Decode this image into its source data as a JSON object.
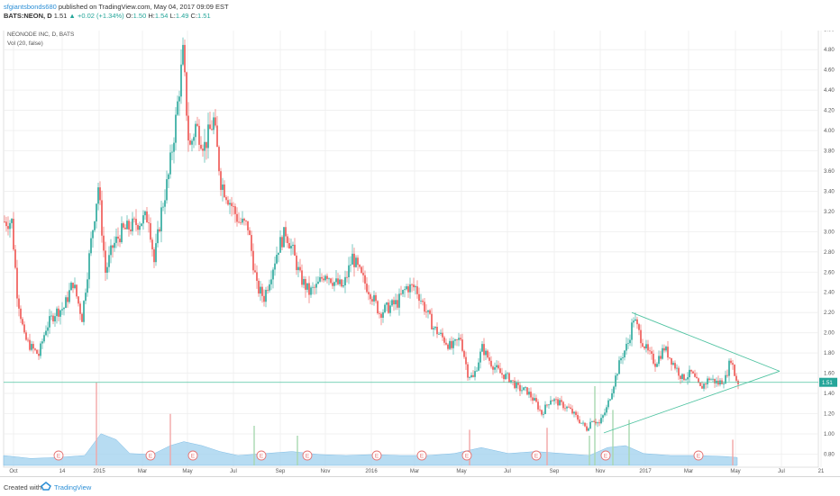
{
  "header": {
    "author": "sfgiantsbonds680",
    "published": "published on TradingView.com, May 04, 2017 09:09 EST",
    "ticker": "BATS:NEON, D",
    "price": "1.51",
    "change": "+0.02 (+1.34%)",
    "o_label": "O:",
    "o_value": "1.50",
    "h_label": "H:",
    "h_value": "1.54",
    "l_label": "L:",
    "l_value": "1.49",
    "c_label": "C:",
    "c_value": "1.51"
  },
  "footer": {
    "created_with": "Created with",
    "brand": "TradingView"
  },
  "chart_data": {
    "type": "candlestick",
    "legend": [
      "NEONODE INC, D, BATS",
      "Vol (20, false)"
    ],
    "current_price_label": "1.51",
    "current_price": 1.51,
    "y_ticks": [
      0.8,
      1.0,
      1.2,
      1.4,
      1.6,
      1.8,
      2.0,
      2.2,
      2.4,
      2.6,
      2.8,
      3.0,
      3.2,
      3.4,
      3.6,
      3.8,
      4.0,
      4.2,
      4.4,
      4.6,
      4.8,
      5.0
    ],
    "ylim": [
      0.72,
      5.02
    ],
    "x_ticks": [
      {
        "label": "Oct",
        "t": 11
      },
      {
        "label": "14",
        "t": 65
      },
      {
        "label": "2015",
        "t": 106
      },
      {
        "label": "Mar",
        "t": 154
      },
      {
        "label": "May",
        "t": 204
      },
      {
        "label": "Jul",
        "t": 255
      },
      {
        "label": "Sep",
        "t": 307
      },
      {
        "label": "Nov",
        "t": 357
      },
      {
        "label": "2016",
        "t": 408
      },
      {
        "label": "Mar",
        "t": 456
      },
      {
        "label": "May",
        "t": 508
      },
      {
        "label": "Jul",
        "t": 559
      },
      {
        "label": "Sep",
        "t": 611
      },
      {
        "label": "Nov",
        "t": 662
      },
      {
        "label": "2017",
        "t": 712
      },
      {
        "label": "Mar",
        "t": 760
      },
      {
        "label": "May",
        "t": 812
      },
      {
        "label": "Jul",
        "t": 863
      },
      {
        "label": "21",
        "t": 907
      }
    ],
    "earnings_marker_label": "E",
    "earnings_t": [
      61,
      163,
      210,
      286,
      337,
      414,
      464,
      514,
      591,
      668,
      771
    ],
    "price_path": [
      [
        0,
        3.1
      ],
      [
        8,
        3.1
      ],
      [
        14,
        2.4
      ],
      [
        22,
        1.95
      ],
      [
        30,
        1.85
      ],
      [
        38,
        1.78
      ],
      [
        46,
        2.05
      ],
      [
        56,
        2.2
      ],
      [
        66,
        2.25
      ],
      [
        76,
        2.5
      ],
      [
        86,
        2.15
      ],
      [
        96,
        2.9
      ],
      [
        104,
        3.45
      ],
      [
        112,
        2.6
      ],
      [
        120,
        2.85
      ],
      [
        130,
        3.0
      ],
      [
        140,
        3.05
      ],
      [
        150,
        3.1
      ],
      [
        160,
        3.15
      ],
      [
        166,
        2.7
      ],
      [
        174,
        3.2
      ],
      [
        182,
        3.55
      ],
      [
        190,
        4.1
      ],
      [
        198,
        4.75
      ],
      [
        205,
        3.8
      ],
      [
        212,
        4.05
      ],
      [
        222,
        3.85
      ],
      [
        232,
        4.1
      ],
      [
        240,
        3.5
      ],
      [
        250,
        3.3
      ],
      [
        260,
        3.1
      ],
      [
        270,
        3.05
      ],
      [
        280,
        2.45
      ],
      [
        288,
        2.35
      ],
      [
        296,
        2.6
      ],
      [
        304,
        2.85
      ],
      [
        312,
        3.0
      ],
      [
        320,
        2.8
      ],
      [
        328,
        2.55
      ],
      [
        338,
        2.4
      ],
      [
        346,
        2.45
      ],
      [
        356,
        2.6
      ],
      [
        366,
        2.5
      ],
      [
        376,
        2.45
      ],
      [
        386,
        2.75
      ],
      [
        396,
        2.55
      ],
      [
        406,
        2.4
      ],
      [
        416,
        2.2
      ],
      [
        426,
        2.25
      ],
      [
        436,
        2.3
      ],
      [
        446,
        2.45
      ],
      [
        456,
        2.45
      ],
      [
        466,
        2.25
      ],
      [
        476,
        2.05
      ],
      [
        486,
        1.95
      ],
      [
        496,
        1.85
      ],
      [
        506,
        1.95
      ],
      [
        514,
        1.6
      ],
      [
        520,
        1.55
      ],
      [
        530,
        1.85
      ],
      [
        540,
        1.7
      ],
      [
        550,
        1.6
      ],
      [
        560,
        1.55
      ],
      [
        570,
        1.45
      ],
      [
        580,
        1.42
      ],
      [
        590,
        1.3
      ],
      [
        596,
        1.2
      ],
      [
        606,
        1.35
      ],
      [
        616,
        1.3
      ],
      [
        626,
        1.25
      ],
      [
        636,
        1.15
      ],
      [
        646,
        1.05
      ],
      [
        652,
        1.15
      ],
      [
        660,
        1.1
      ],
      [
        668,
        1.25
      ],
      [
        676,
        1.5
      ],
      [
        684,
        1.75
      ],
      [
        692,
        1.9
      ],
      [
        698,
        2.15
      ],
      [
        706,
        1.95
      ],
      [
        714,
        1.8
      ],
      [
        722,
        1.7
      ],
      [
        732,
        1.85
      ],
      [
        742,
        1.7
      ],
      [
        752,
        1.55
      ],
      [
        762,
        1.6
      ],
      [
        772,
        1.45
      ],
      [
        782,
        1.55
      ],
      [
        792,
        1.5
      ],
      [
        800,
        1.55
      ],
      [
        806,
        1.75
      ],
      [
        811,
        1.55
      ],
      [
        814,
        1.51
      ]
    ],
    "triangle": {
      "upper": [
        [
          697,
          2.2
        ],
        [
          861,
          1.62
        ]
      ],
      "lower": [
        [
          666,
          1.01
        ],
        [
          861,
          1.62
        ]
      ]
    },
    "volume": {
      "area": [
        [
          0,
          0.5
        ],
        [
          30,
          0.35
        ],
        [
          60,
          0.4
        ],
        [
          90,
          0.5
        ],
        [
          108,
          1.6
        ],
        [
          125,
          1.3
        ],
        [
          140,
          0.6
        ],
        [
          165,
          0.55
        ],
        [
          185,
          1.0
        ],
        [
          200,
          1.2
        ],
        [
          220,
          1.0
        ],
        [
          240,
          0.7
        ],
        [
          260,
          0.5
        ],
        [
          290,
          0.6
        ],
        [
          320,
          0.7
        ],
        [
          350,
          0.55
        ],
        [
          380,
          0.5
        ],
        [
          410,
          0.55
        ],
        [
          440,
          0.5
        ],
        [
          470,
          0.5
        ],
        [
          500,
          0.6
        ],
        [
          530,
          0.9
        ],
        [
          560,
          0.6
        ],
        [
          590,
          0.7
        ],
        [
          620,
          0.6
        ],
        [
          650,
          0.5
        ],
        [
          670,
          0.9
        ],
        [
          690,
          1.0
        ],
        [
          710,
          0.6
        ],
        [
          740,
          0.5
        ],
        [
          770,
          0.5
        ],
        [
          800,
          0.45
        ],
        [
          814,
          0.4
        ]
      ],
      "spikes": [
        [
          103,
          4.2
        ],
        [
          185,
          2.6
        ],
        [
          278,
          2.0
        ],
        [
          326,
          1.5
        ],
        [
          517,
          1.8
        ],
        [
          603,
          1.9
        ],
        [
          650,
          1.5
        ],
        [
          656,
          4.0
        ],
        [
          676,
          2.8
        ],
        [
          694,
          2.3
        ],
        [
          809,
          1.3
        ]
      ]
    }
  }
}
